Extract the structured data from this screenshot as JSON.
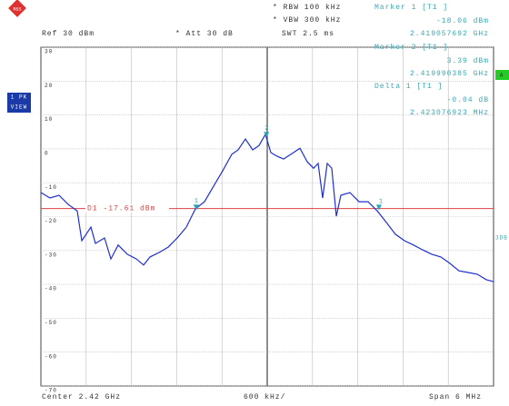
{
  "chart_data": {
    "type": "line",
    "logo": "R&S",
    "header": {
      "ref": "Ref  30 dBm",
      "att": "* Att  30 dB",
      "rbw": "* RBW 100 kHz",
      "vbw": "* VBW 300 kHz",
      "swt": "SWT 2.5 ms",
      "trace": "1 PK",
      "view": "VIEW",
      "side_a": "A",
      "side_3db": "3DB"
    },
    "footer": {
      "center": "Center  2.42 GHz",
      "div": "600 kHz/",
      "span": "Span  6 MHz"
    },
    "x": [
      2417.0,
      2417.12,
      2417.241,
      2417.361,
      2417.482,
      2417.542,
      2417.663,
      2417.723,
      2417.843,
      2417.928,
      2418.024,
      2418.145,
      2418.265,
      2418.361,
      2418.446,
      2418.566,
      2418.687,
      2418.807,
      2418.928,
      2419.048,
      2419.169,
      2419.289,
      2419.41,
      2419.53,
      2419.614,
      2419.711,
      2419.807,
      2419.892,
      2419.976,
      2420.048,
      2420.133,
      2420.217,
      2420.313,
      2420.434,
      2420.53,
      2420.614,
      2420.675,
      2420.735,
      2420.795,
      2420.855,
      2420.916,
      2420.976,
      2421.096,
      2421.217,
      2421.337,
      2421.458,
      2421.578,
      2421.699,
      2421.819,
      2421.94,
      2422.06,
      2422.181,
      2422.301,
      2422.422,
      2422.542,
      2422.663,
      2422.783,
      2422.904,
      2423.0
    ],
    "series": [
      {
        "name": "1 PK",
        "color": "#1f2fd0",
        "values": [
          -12.9,
          -14.5,
          -13.7,
          -16.4,
          -18.3,
          -27.1,
          -23.1,
          -27.9,
          -26.3,
          -32.5,
          -28.4,
          -31.1,
          -32.5,
          -34.3,
          -31.9,
          -30.6,
          -29.0,
          -26.3,
          -23.1,
          -17.7,
          -15.6,
          -11.0,
          -6.5,
          -1.6,
          -0.3,
          2.9,
          -0.3,
          1.0,
          4.3,
          -1.1,
          -2.2,
          -3.0,
          -1.6,
          0.2,
          -3.8,
          -5.7,
          -4.3,
          -14.5,
          -4.3,
          -5.7,
          -19.9,
          -13.7,
          -12.9,
          -15.6,
          -15.6,
          -18.3,
          -21.7,
          -25.2,
          -27.1,
          -28.4,
          -29.8,
          -31.1,
          -31.9,
          -33.8,
          -36.0,
          -36.5,
          -37.0,
          -38.6,
          -39.2
        ]
      }
    ],
    "xlim": [
      2417,
      2423
    ],
    "ylim": [
      -70,
      30
    ],
    "yticks": [
      30,
      20,
      10,
      0,
      -10,
      -20,
      -30,
      -40,
      -50,
      -60,
      -70
    ],
    "grid": true,
    "ref_line": {
      "value": -17.61,
      "label": "D1 -17.61 dBm",
      "color": "#e04040"
    },
    "markers": [
      {
        "name": "Marker 1 [T1 ]",
        "tag": "1",
        "x": 2419.057692,
        "x_label": "2.419057692 GHz",
        "value": -18.06,
        "value_label": "-18.06 dBm"
      },
      {
        "name": "Marker 2 [T1 ]",
        "tag": "2",
        "x": 2419.990385,
        "x_label": "2.419990385 GHz",
        "value": 3.39,
        "value_label": "3.39 dBm"
      }
    ],
    "delta": {
      "name": "Delta 1 [T1 ]",
      "tag": "1",
      "x": 2.423076923,
      "x_label": "2.423076923 MHz",
      "value": -0.04,
      "value_label": "-0.04 dB"
    }
  }
}
